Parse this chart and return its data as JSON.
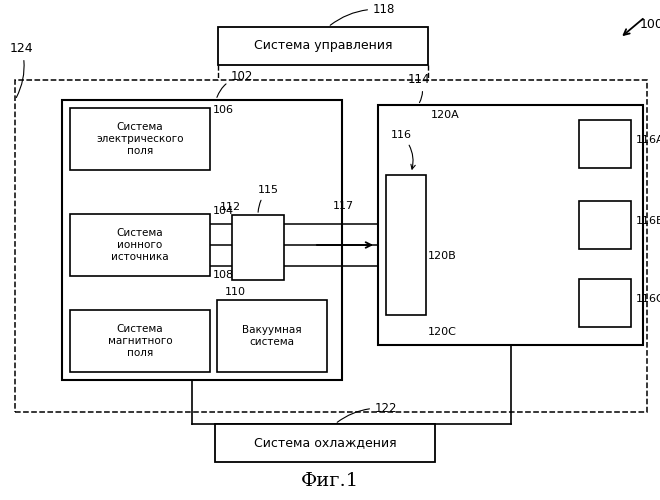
{
  "title": "Фиг.1",
  "bg_color": "#ffffff",
  "box_control": "Система управления",
  "box_cooling": "Система охлаждения",
  "box_electric": "Система\nэлектрического\nполя",
  "box_ion": "Система\nионного\nисточника",
  "box_magnetic": "Система\nмагнитного\nполя",
  "box_vacuum": "Вакуумная\nсистема",
  "lbl_100": "100",
  "lbl_102": "102",
  "lbl_104": "104",
  "lbl_106": "106",
  "lbl_108": "108",
  "lbl_110": "110",
  "lbl_112": "112",
  "lbl_114": "114",
  "lbl_115": "115",
  "lbl_116": "116",
  "lbl_116A": "116A",
  "lbl_116B": "116B",
  "lbl_116C": "116C",
  "lbl_117": "117",
  "lbl_118": "118",
  "lbl_120A": "120A",
  "lbl_120B": "120B",
  "lbl_120C": "120C",
  "lbl_122": "122",
  "lbl_124": "124"
}
